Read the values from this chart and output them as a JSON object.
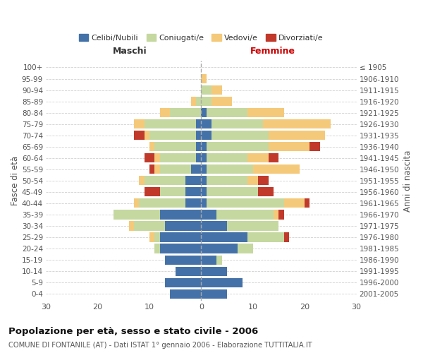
{
  "age_groups": [
    "0-4",
    "5-9",
    "10-14",
    "15-19",
    "20-24",
    "25-29",
    "30-34",
    "35-39",
    "40-44",
    "45-49",
    "50-54",
    "55-59",
    "60-64",
    "65-69",
    "70-74",
    "75-79",
    "80-84",
    "85-89",
    "90-94",
    "95-99",
    "100+"
  ],
  "birth_years": [
    "2001-2005",
    "1996-2000",
    "1991-1995",
    "1986-1990",
    "1981-1985",
    "1976-1980",
    "1971-1975",
    "1966-1970",
    "1961-1965",
    "1956-1960",
    "1951-1955",
    "1946-1950",
    "1941-1945",
    "1936-1940",
    "1931-1935",
    "1926-1930",
    "1921-1925",
    "1916-1920",
    "1911-1915",
    "1906-1910",
    "≤ 1905"
  ],
  "male_celibe": [
    6,
    7,
    5,
    7,
    8,
    8,
    7,
    8,
    3,
    3,
    3,
    2,
    1,
    1,
    1,
    1,
    0,
    0,
    0,
    0,
    0
  ],
  "male_coniugato": [
    0,
    0,
    0,
    0,
    1,
    1,
    6,
    9,
    9,
    5,
    8,
    6,
    7,
    8,
    9,
    10,
    6,
    1,
    0,
    0,
    0
  ],
  "male_vedovo": [
    0,
    0,
    0,
    0,
    0,
    1,
    1,
    0,
    1,
    0,
    1,
    1,
    1,
    1,
    1,
    2,
    2,
    1,
    0,
    0,
    0
  ],
  "male_divorziato": [
    0,
    0,
    0,
    0,
    0,
    0,
    0,
    0,
    0,
    3,
    0,
    1,
    2,
    0,
    2,
    0,
    0,
    0,
    0,
    0,
    0
  ],
  "female_celibe": [
    5,
    8,
    5,
    3,
    7,
    9,
    5,
    3,
    1,
    1,
    1,
    1,
    1,
    1,
    2,
    2,
    1,
    0,
    0,
    0,
    0
  ],
  "female_coniugato": [
    0,
    0,
    0,
    1,
    3,
    7,
    10,
    11,
    15,
    10,
    8,
    9,
    8,
    12,
    11,
    10,
    8,
    2,
    2,
    0,
    0
  ],
  "female_vedovo": [
    0,
    0,
    0,
    0,
    0,
    0,
    0,
    1,
    4,
    0,
    2,
    9,
    4,
    8,
    11,
    13,
    7,
    4,
    2,
    1,
    0
  ],
  "female_divorziato": [
    0,
    0,
    0,
    0,
    0,
    1,
    0,
    1,
    1,
    3,
    2,
    0,
    2,
    2,
    0,
    0,
    0,
    0,
    0,
    0,
    0
  ],
  "colors": {
    "celibe": "#4472a8",
    "coniugato": "#c5d8a0",
    "vedovo": "#f5c97a",
    "divorziato": "#c0392b"
  },
  "title": "Popolazione per età, sesso e stato civile - 2006",
  "subtitle": "COMUNE DI FONTANILE (AT) - Dati ISTAT 1° gennaio 2006 - Elaborazione TUTTITALIA.IT",
  "xlabel_left": "Maschi",
  "xlabel_right": "Femmine",
  "ylabel": "Fasce di età",
  "ylabel_right": "Anni di nascita",
  "xlim": 30,
  "background_color": "#ffffff",
  "grid_color": "#cccccc"
}
